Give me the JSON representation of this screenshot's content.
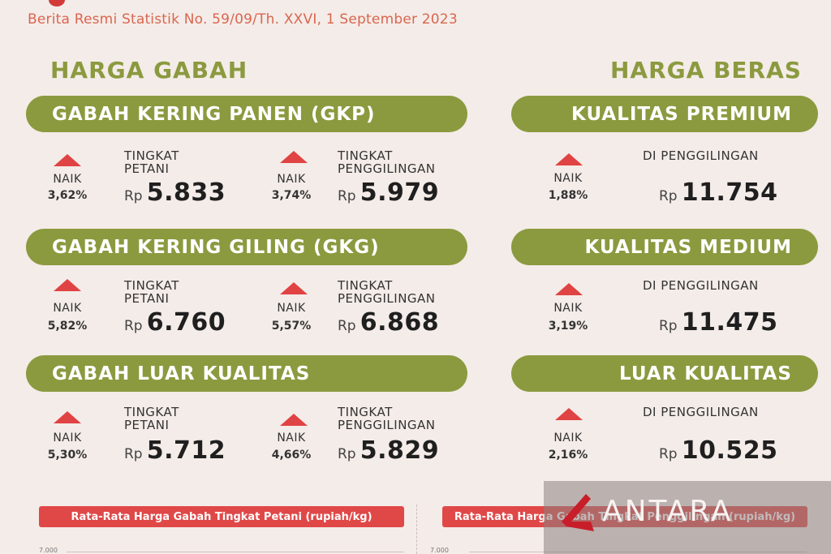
{
  "header": {
    "subtitle": "Berita Resmi Statistik No. 59/09/Th. XXVI, 1 September 2023"
  },
  "gabah": {
    "title": "HARGA GABAH",
    "sections": [
      {
        "name": "GABAH KERING PANEN (GKP)",
        "petani": {
          "change_label": "NAIK",
          "change_pct": "3,62%",
          "label1": "TINGKAT",
          "label2": "PETANI",
          "currency": "Rp",
          "value": "5.833"
        },
        "penggilingan": {
          "change_label": "NAIK",
          "change_pct": "3,74%",
          "label1": "TINGKAT",
          "label2": "PENGGILINGAN",
          "currency": "Rp",
          "value": "5.979"
        }
      },
      {
        "name": "GABAH KERING GILING (GKG)",
        "petani": {
          "change_label": "NAIK",
          "change_pct": "5,82%",
          "label1": "TINGKAT",
          "label2": "PETANI",
          "currency": "Rp",
          "value": "6.760"
        },
        "penggilingan": {
          "change_label": "NAIK",
          "change_pct": "5,57%",
          "label1": "TINGKAT",
          "label2": "PENGGILINGAN",
          "currency": "Rp",
          "value": "6.868"
        }
      },
      {
        "name": "GABAH LUAR KUALITAS",
        "petani": {
          "change_label": "NAIK",
          "change_pct": "5,30%",
          "label1": "TINGKAT",
          "label2": "PETANI",
          "currency": "Rp",
          "value": "5.712"
        },
        "penggilingan": {
          "change_label": "NAIK",
          "change_pct": "4,66%",
          "label1": "TINGKAT",
          "label2": "PENGGILINGAN",
          "currency": "Rp",
          "value": "5.829"
        }
      }
    ]
  },
  "beras": {
    "title": "HARGA BERAS",
    "sections": [
      {
        "name": "KUALITAS PREMIUM",
        "change_label": "NAIK",
        "change_pct": "1,88%",
        "label": "DI PENGGILINGAN",
        "currency": "Rp",
        "value": "11.754"
      },
      {
        "name": "KUALITAS MEDIUM",
        "change_label": "NAIK",
        "change_pct": "3,19%",
        "label": "DI PENGGILINGAN",
        "currency": "Rp",
        "value": "11.475"
      },
      {
        "name": "LUAR KUALITAS",
        "change_label": "NAIK",
        "change_pct": "2,16%",
        "label": "DI PENGGILINGAN",
        "currency": "Rp",
        "value": "10.525"
      }
    ]
  },
  "charts": {
    "left_title": "Rata-Rata Harga Gabah Tingkat Petani (rupiah/kg)",
    "right_title": "Rata-Rata Harga Gabah Tingkat Penggilingan (rupiah/kg)",
    "left_tick": "7.000",
    "right_tick": "7.000"
  },
  "watermark": {
    "text": "ANTARA"
  },
  "colors": {
    "green": "#8b9a3f",
    "red": "#e04343",
    "background": "#f4ece8"
  }
}
